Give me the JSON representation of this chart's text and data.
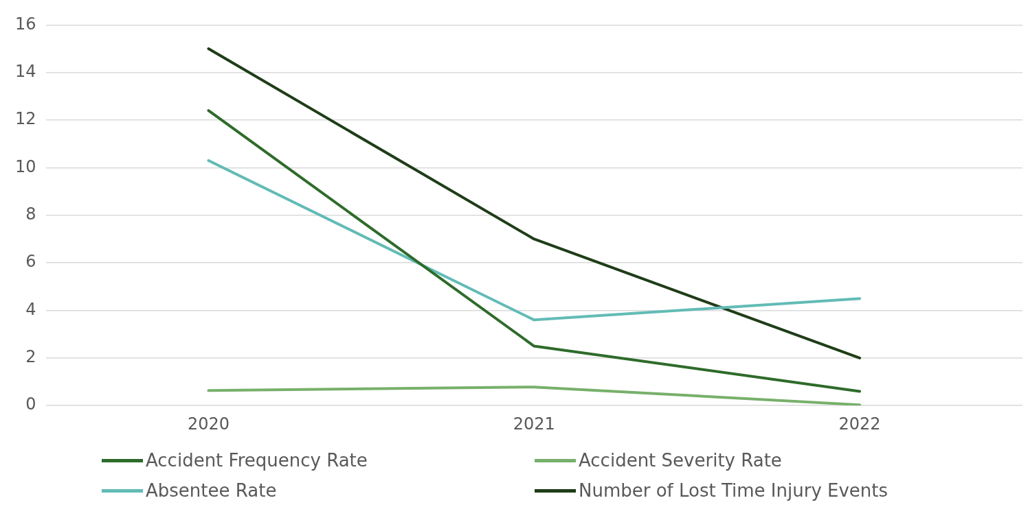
{
  "chart_data": {
    "type": "line",
    "categories": [
      "2020",
      "2021",
      "2022"
    ],
    "series": [
      {
        "name": "Accident Frequency Rate",
        "color": "#2e6b2a",
        "values": [
          12.4,
          2.5,
          0.6
        ]
      },
      {
        "name": "Accident Severity Rate",
        "color": "#77b06a",
        "values": [
          0.63,
          0.78,
          0.03
        ]
      },
      {
        "name": "Absentee Rate",
        "color": "#62bbb5",
        "values": [
          10.3,
          3.6,
          4.5
        ]
      },
      {
        "name": "Number of Lost Time Injury Events",
        "color": "#1f3d18",
        "values": [
          15,
          7,
          2
        ]
      }
    ],
    "ylim": [
      0,
      16
    ],
    "yticks": [
      0,
      2,
      4,
      6,
      8,
      10,
      12,
      14,
      16
    ],
    "grid": "y",
    "legend": "bottom",
    "marker": "none",
    "line_style": "solid"
  }
}
